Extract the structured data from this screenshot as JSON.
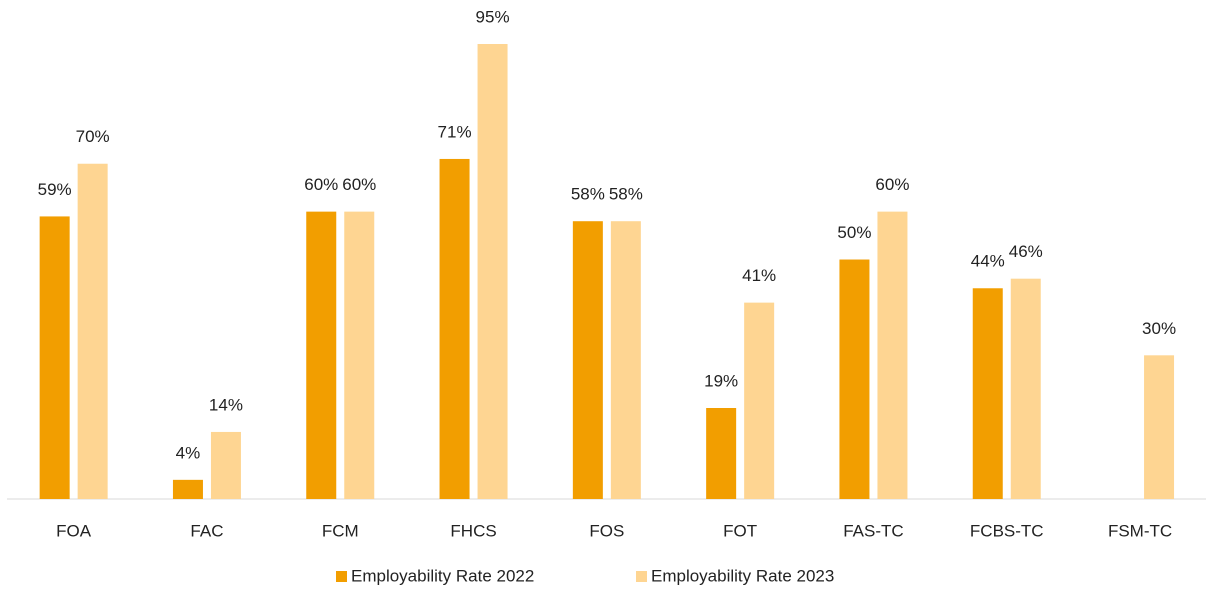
{
  "chart_data": {
    "type": "bar",
    "categories": [
      "FOA",
      "FAC",
      "FCM",
      "FHCS",
      "FOS",
      "FOT",
      "FAS-TC",
      "FCBS-TC",
      "FSM-TC"
    ],
    "series": [
      {
        "name": "Employability Rate 2022",
        "color": "#f29e00",
        "values": [
          59,
          4,
          60,
          71,
          58,
          19,
          50,
          44,
          null
        ],
        "value_labels": [
          "59%",
          "4%",
          "60%",
          "71%",
          "58%",
          "19%",
          "50%",
          "44%",
          null
        ]
      },
      {
        "name": "Employability Rate 2023",
        "color": "#fed592",
        "values": [
          70,
          14,
          60,
          95,
          58,
          41,
          60,
          46,
          30
        ],
        "value_labels": [
          "70%",
          "14%",
          "60%",
          "95%",
          "58%",
          "41%",
          "60%",
          "46%",
          "30%"
        ]
      }
    ],
    "legend": "bottom"
  }
}
